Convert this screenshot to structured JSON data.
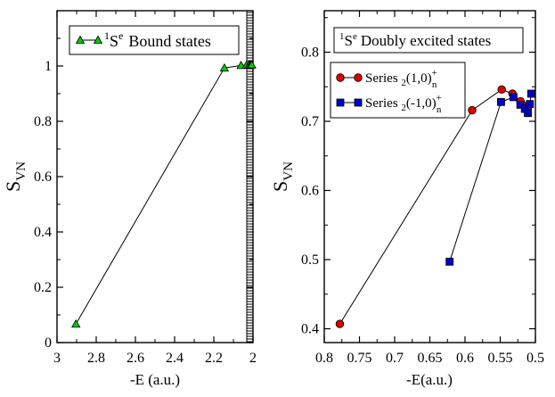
{
  "chart_data": [
    {
      "type": "line",
      "title": "",
      "xlabel": "-E (a.u.)",
      "ylabel": "S",
      "ylabel_sub": "VN",
      "xlim": [
        3,
        2
      ],
      "ylim": [
        0,
        1.2
      ],
      "x_ticks": [
        3,
        2.8,
        2.6,
        2.4,
        2.2,
        2
      ],
      "x_tick_labels": [
        "3",
        "2.8",
        "2.6",
        "2.4",
        "2.2",
        "2"
      ],
      "y_ticks": [
        0,
        0.2,
        0.4,
        0.6,
        0.8,
        1
      ],
      "y_tick_labels": [
        "0",
        "0.2",
        "0.4",
        "0.6",
        "0.8",
        "1"
      ],
      "legend": {
        "placement": "top-center",
        "entry_sup": "1",
        "entry_main": "S",
        "entry_sup2": "e",
        "entry_rest": "Bound states"
      },
      "series": [
        {
          "name": "1Se Bound states",
          "marker": "triangle",
          "color": "#00cc00",
          "x": [
            2.9037,
            2.1459,
            2.0612,
            2.0335,
            2.0211,
            2.0145,
            2.0106,
            2.0081,
            2.0064
          ],
          "y": [
            0.067,
            0.993,
            1.002,
            1.003,
            1.004,
            1.004,
            1.004,
            1.004,
            1.004
          ]
        }
      ]
    },
    {
      "type": "line",
      "title": "",
      "xlabel": "-E(a.u.)",
      "ylabel": "S",
      "ylabel_sub": "VN",
      "xlim": [
        0.8,
        0.5
      ],
      "ylim": [
        0.38,
        0.86
      ],
      "x_ticks": [
        0.8,
        0.75,
        0.7,
        0.65,
        0.6,
        0.55,
        0.5
      ],
      "x_tick_labels": [
        "0.8",
        "0.75",
        "0.7",
        "0.65",
        "0.6",
        "0.55",
        "0.5"
      ],
      "y_ticks": [
        0.4,
        0.5,
        0.6,
        0.7,
        0.8
      ],
      "y_tick_labels": [
        "0.4",
        "0.5",
        "0.6",
        "0.7",
        "0.8"
      ],
      "annotation": {
        "sup": "1",
        "main": "S",
        "sup2": "e",
        "rest": "Doubly excited states"
      },
      "legend": {
        "placement": "top-left",
        "entries": [
          {
            "prefix": "Series ",
            "sub": "2",
            "mid": "(1,0)",
            "sup": "+",
            "sub2": "n"
          },
          {
            "prefix": "Series ",
            "sub": "2",
            "mid": "(-1,0)",
            "sup": "+",
            "sub2": "n"
          }
        ]
      },
      "series": [
        {
          "name": "Series 2(1,0)+n",
          "marker": "circle",
          "color": "#dd0000",
          "x": [
            0.7779,
            0.5899,
            0.5479,
            0.5326,
            0.5212,
            0.5148,
            0.5107
          ],
          "y": [
            0.407,
            0.716,
            0.746,
            0.74,
            0.729,
            0.722,
            0.72
          ]
        },
        {
          "name": "Series 2(-1,0)+n",
          "marker": "square",
          "color": "#0000cc",
          "x": [
            0.6219,
            0.5488,
            0.5311,
            0.5214,
            0.515,
            0.5107,
            0.5079,
            0.506
          ],
          "y": [
            0.497,
            0.728,
            0.735,
            0.724,
            0.718,
            0.712,
            0.725,
            0.74
          ]
        }
      ]
    }
  ]
}
